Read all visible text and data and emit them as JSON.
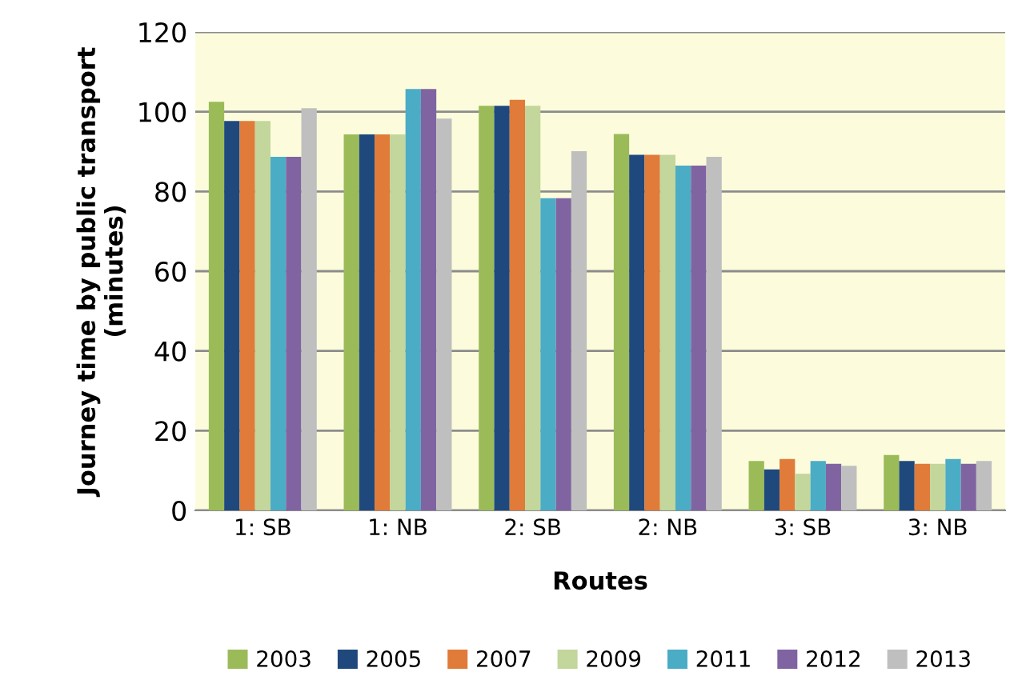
{
  "chart_data": {
    "type": "bar",
    "xlabel": "Routes",
    "ylabel": "Journey time by public transport\n(minutes)",
    "categories": [
      "1: SB",
      "1: NB",
      "2: SB",
      "2: NB",
      "3: SB",
      "3: NB"
    ],
    "series": [
      {
        "name": "2003",
        "color": "#9bbb59",
        "values": [
          102.5,
          94.3,
          101.5,
          94.4,
          12.4,
          13.9
        ]
      },
      {
        "name": "2005",
        "color": "#1f497d",
        "values": [
          97.7,
          94.3,
          101.5,
          89.2,
          10.3,
          12.4
        ]
      },
      {
        "name": "2007",
        "color": "#e07b39",
        "values": [
          97.7,
          94.3,
          103,
          89.2,
          12.9,
          11.7
        ]
      },
      {
        "name": "2009",
        "color": "#c3d69b",
        "values": [
          97.7,
          94.3,
          101.5,
          89.2,
          9.2,
          11.7
        ]
      },
      {
        "name": "2011",
        "color": "#4bacc6",
        "values": [
          88.7,
          105.7,
          78.3,
          86.5,
          12.4,
          12.9
        ]
      },
      {
        "name": "2012",
        "color": "#8064a2",
        "values": [
          88.7,
          105.7,
          78.3,
          86.5,
          11.7,
          11.7
        ]
      },
      {
        "name": "2013",
        "color": "#bfbfbf",
        "values": [
          100.9,
          98.3,
          90.1,
          88.7,
          11.2,
          12.4
        ]
      }
    ],
    "ylim": [
      0,
      120
    ],
    "yticks": [
      0,
      20,
      40,
      60,
      80,
      100,
      120
    ],
    "grid": "y",
    "legend": "bottom"
  }
}
